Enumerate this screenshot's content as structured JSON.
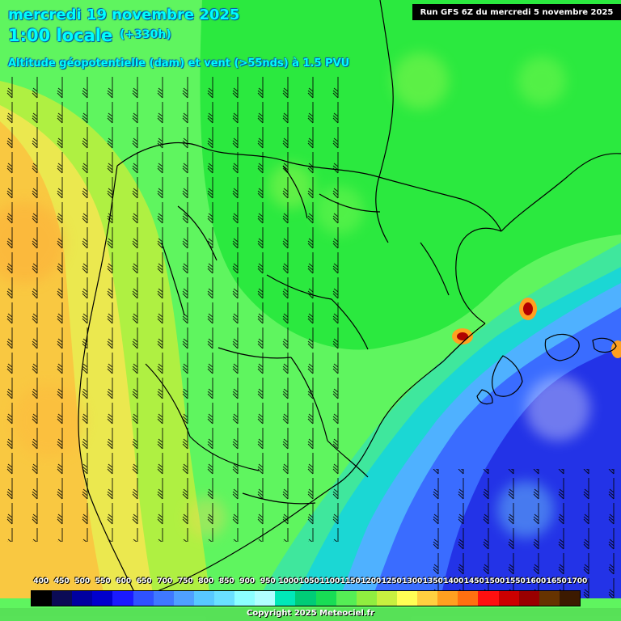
{
  "header": {
    "date": "mercredi 19 novembre 2025",
    "time": "1:00 locale",
    "offset": "(+330h)",
    "subtitle": "Altitude géopotentielle (dam) et vent (>55nds) à 1.5 PVU"
  },
  "run_info": "Run GFS 6Z du mercredi 5 novembre 2025",
  "legend": {
    "labels": [
      "400",
      "450",
      "500",
      "550",
      "600",
      "650",
      "700",
      "750",
      "800",
      "850",
      "900",
      "950",
      "1000",
      "1050",
      "1100",
      "1150",
      "1200",
      "1250",
      "1300",
      "1350",
      "1400",
      "1450",
      "1500",
      "1550",
      "1600",
      "1650",
      "1700"
    ],
    "colors": [
      "#000000",
      "#0b0b55",
      "#0000a0",
      "#0000cd",
      "#1a1aff",
      "#2f52ff",
      "#3f78ff",
      "#4fa0ff",
      "#58c8ff",
      "#6ae0ff",
      "#8cffff",
      "#b0ffff",
      "#00e8b8",
      "#00cc77",
      "#18dd55",
      "#55ee55",
      "#90ee40",
      "#c8f040",
      "#ffff55",
      "#ffd040",
      "#ffa020",
      "#ff7010",
      "#ff1010",
      "#cc0000",
      "#990000",
      "#663300",
      "#3c1a00"
    ]
  },
  "map_colors": {
    "land_green": "#5ff55f",
    "yellow_band": "#d5f03b",
    "orange_band": "#ffc040",
    "cyan_band": "#18d8c8",
    "blue_band": "#3b66ff",
    "deep_blue": "#1f2ae0"
  },
  "copyright": "Copyright 2025 Meteociel.fr"
}
